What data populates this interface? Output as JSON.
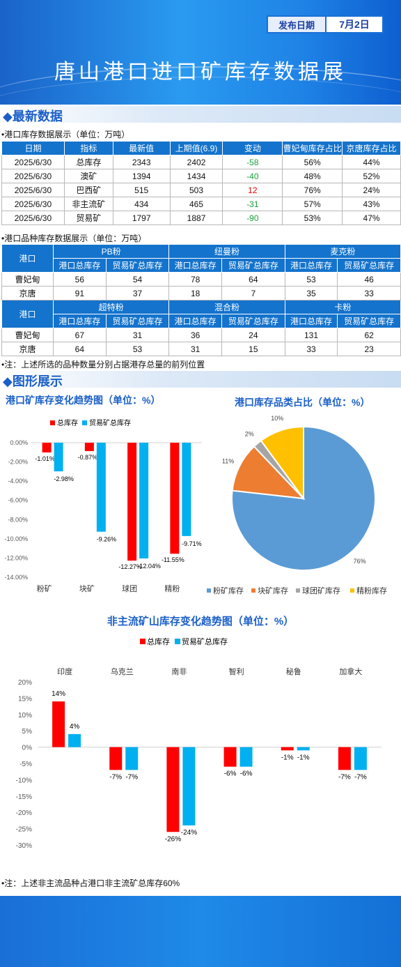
{
  "header": {
    "date_label": "发布日期",
    "date_value": "7月2日",
    "title": "唐山港口进口矿库存数据展"
  },
  "sections": {
    "latest": "最新数据",
    "graphs": "图形展示"
  },
  "table1": {
    "caption": "港口库存数据展示（单位：万吨）",
    "headers": [
      "日期",
      "指标",
      "最新值",
      "上期值(6.9)",
      "变动",
      "曹妃甸库存占比",
      "京唐库存占比"
    ],
    "rows": [
      [
        "2025/6/30",
        "总库存",
        "2343",
        "2402",
        "-58",
        "56%",
        "44%"
      ],
      [
        "2025/6/30",
        "澳矿",
        "1394",
        "1434",
        "-40",
        "48%",
        "52%"
      ],
      [
        "2025/6/30",
        "巴西矿",
        "515",
        "503",
        "12",
        "76%",
        "24%"
      ],
      [
        "2025/6/30",
        "非主流矿",
        "434",
        "465",
        "-31",
        "57%",
        "43%"
      ],
      [
        "2025/6/30",
        "贸易矿",
        "1797",
        "1887",
        "-90",
        "53%",
        "47%"
      ]
    ]
  },
  "table2": {
    "caption": "港口品种库存数据展示（单位：万吨）",
    "port_label": "港口",
    "sub_total": "港口总库存",
    "sub_trade": "贸易矿总库存",
    "group1": [
      "PB粉",
      "纽曼粉",
      "麦克粉"
    ],
    "group2": [
      "超特粉",
      "混合粉",
      "卡粉"
    ],
    "rows1": [
      [
        "曹妃甸",
        "56",
        "54",
        "78",
        "64",
        "53",
        "46"
      ],
      [
        "京唐",
        "91",
        "37",
        "18",
        "7",
        "35",
        "33"
      ]
    ],
    "rows2": [
      [
        "曹妃甸",
        "67",
        "31",
        "36",
        "24",
        "131",
        "62"
      ],
      [
        "京唐",
        "64",
        "53",
        "31",
        "15",
        "33",
        "23"
      ]
    ],
    "note": "注：上述所选的品种数量分别占据港存总量的前列位置"
  },
  "chart1_title": "港口矿库存变化趋势图（单位：%）",
  "chart2_title": "港口库存品类占比（单位：%）",
  "chart3_title": "非主流矿山库存变化趋势图（单位：%）",
  "note2": "注：上述非主流品种占港口非主流矿总库存60%",
  "colors": {
    "red": "#ff0000",
    "blue": "#00b0f0",
    "pie": [
      "#5b9bd5",
      "#ed7d31",
      "#a5a5a5",
      "#ffc000"
    ]
  },
  "chart_data": [
    {
      "type": "bar",
      "title": "港口矿库存变化趋势图（单位：%）",
      "categories": [
        "粉矿",
        "块矿",
        "球团",
        "精粉"
      ],
      "series": [
        {
          "name": "总库存",
          "values": [
            -1.01,
            -0.87,
            -12.27,
            -11.55
          ],
          "labels": [
            "-1.01%",
            "-0.87%",
            "-12.27%",
            "-11.55%"
          ]
        },
        {
          "name": "贸易矿总库存",
          "values": [
            -2.98,
            -9.26,
            -12.04,
            -9.71
          ],
          "labels": [
            "-2.98%",
            "-9.26%",
            "-12.04%",
            "-9.71%"
          ]
        }
      ],
      "ylim": [
        -14,
        0
      ],
      "yticks": [
        "0.00%",
        "-2.00%",
        "-4.00%",
        "-6.00%",
        "-8.00%",
        "-10.00%",
        "-12.00%",
        "-14.00%"
      ],
      "legend": "top"
    },
    {
      "type": "pie",
      "title": "港口库存品类占比（单位：%）",
      "categories": [
        "粉矿库存",
        "块矿库存",
        "球团矿库存",
        "精粉库存"
      ],
      "values": [
        76,
        11,
        2,
        10
      ],
      "labels": [
        "76%",
        "11%",
        "2%",
        "10%"
      ],
      "legend": "bottom"
    },
    {
      "type": "bar",
      "title": "非主流矿山库存变化趋势图（单位：%）",
      "categories": [
        "印度",
        "乌克兰",
        "南非",
        "智利",
        "秘鲁",
        "加拿大"
      ],
      "series": [
        {
          "name": "总库存",
          "values": [
            14,
            -7,
            -26,
            -6,
            -1,
            -7
          ],
          "labels": [
            "14%",
            "-7%",
            "-26%",
            "-6%",
            "-1%",
            "-7%"
          ]
        },
        {
          "name": "贸易矿总库存",
          "values": [
            4,
            -7,
            -24,
            -6,
            -1,
            -7
          ],
          "labels": [
            "4%",
            "-7%",
            "-24%",
            "-6%",
            "-1%",
            "-7%"
          ]
        }
      ],
      "ylim": [
        -30,
        20
      ],
      "yticks": [
        "20%",
        "15%",
        "10%",
        "5%",
        "0%",
        "-5%",
        "-10%",
        "-15%",
        "-20%",
        "-25%",
        "-30%"
      ],
      "legend": "top"
    }
  ]
}
